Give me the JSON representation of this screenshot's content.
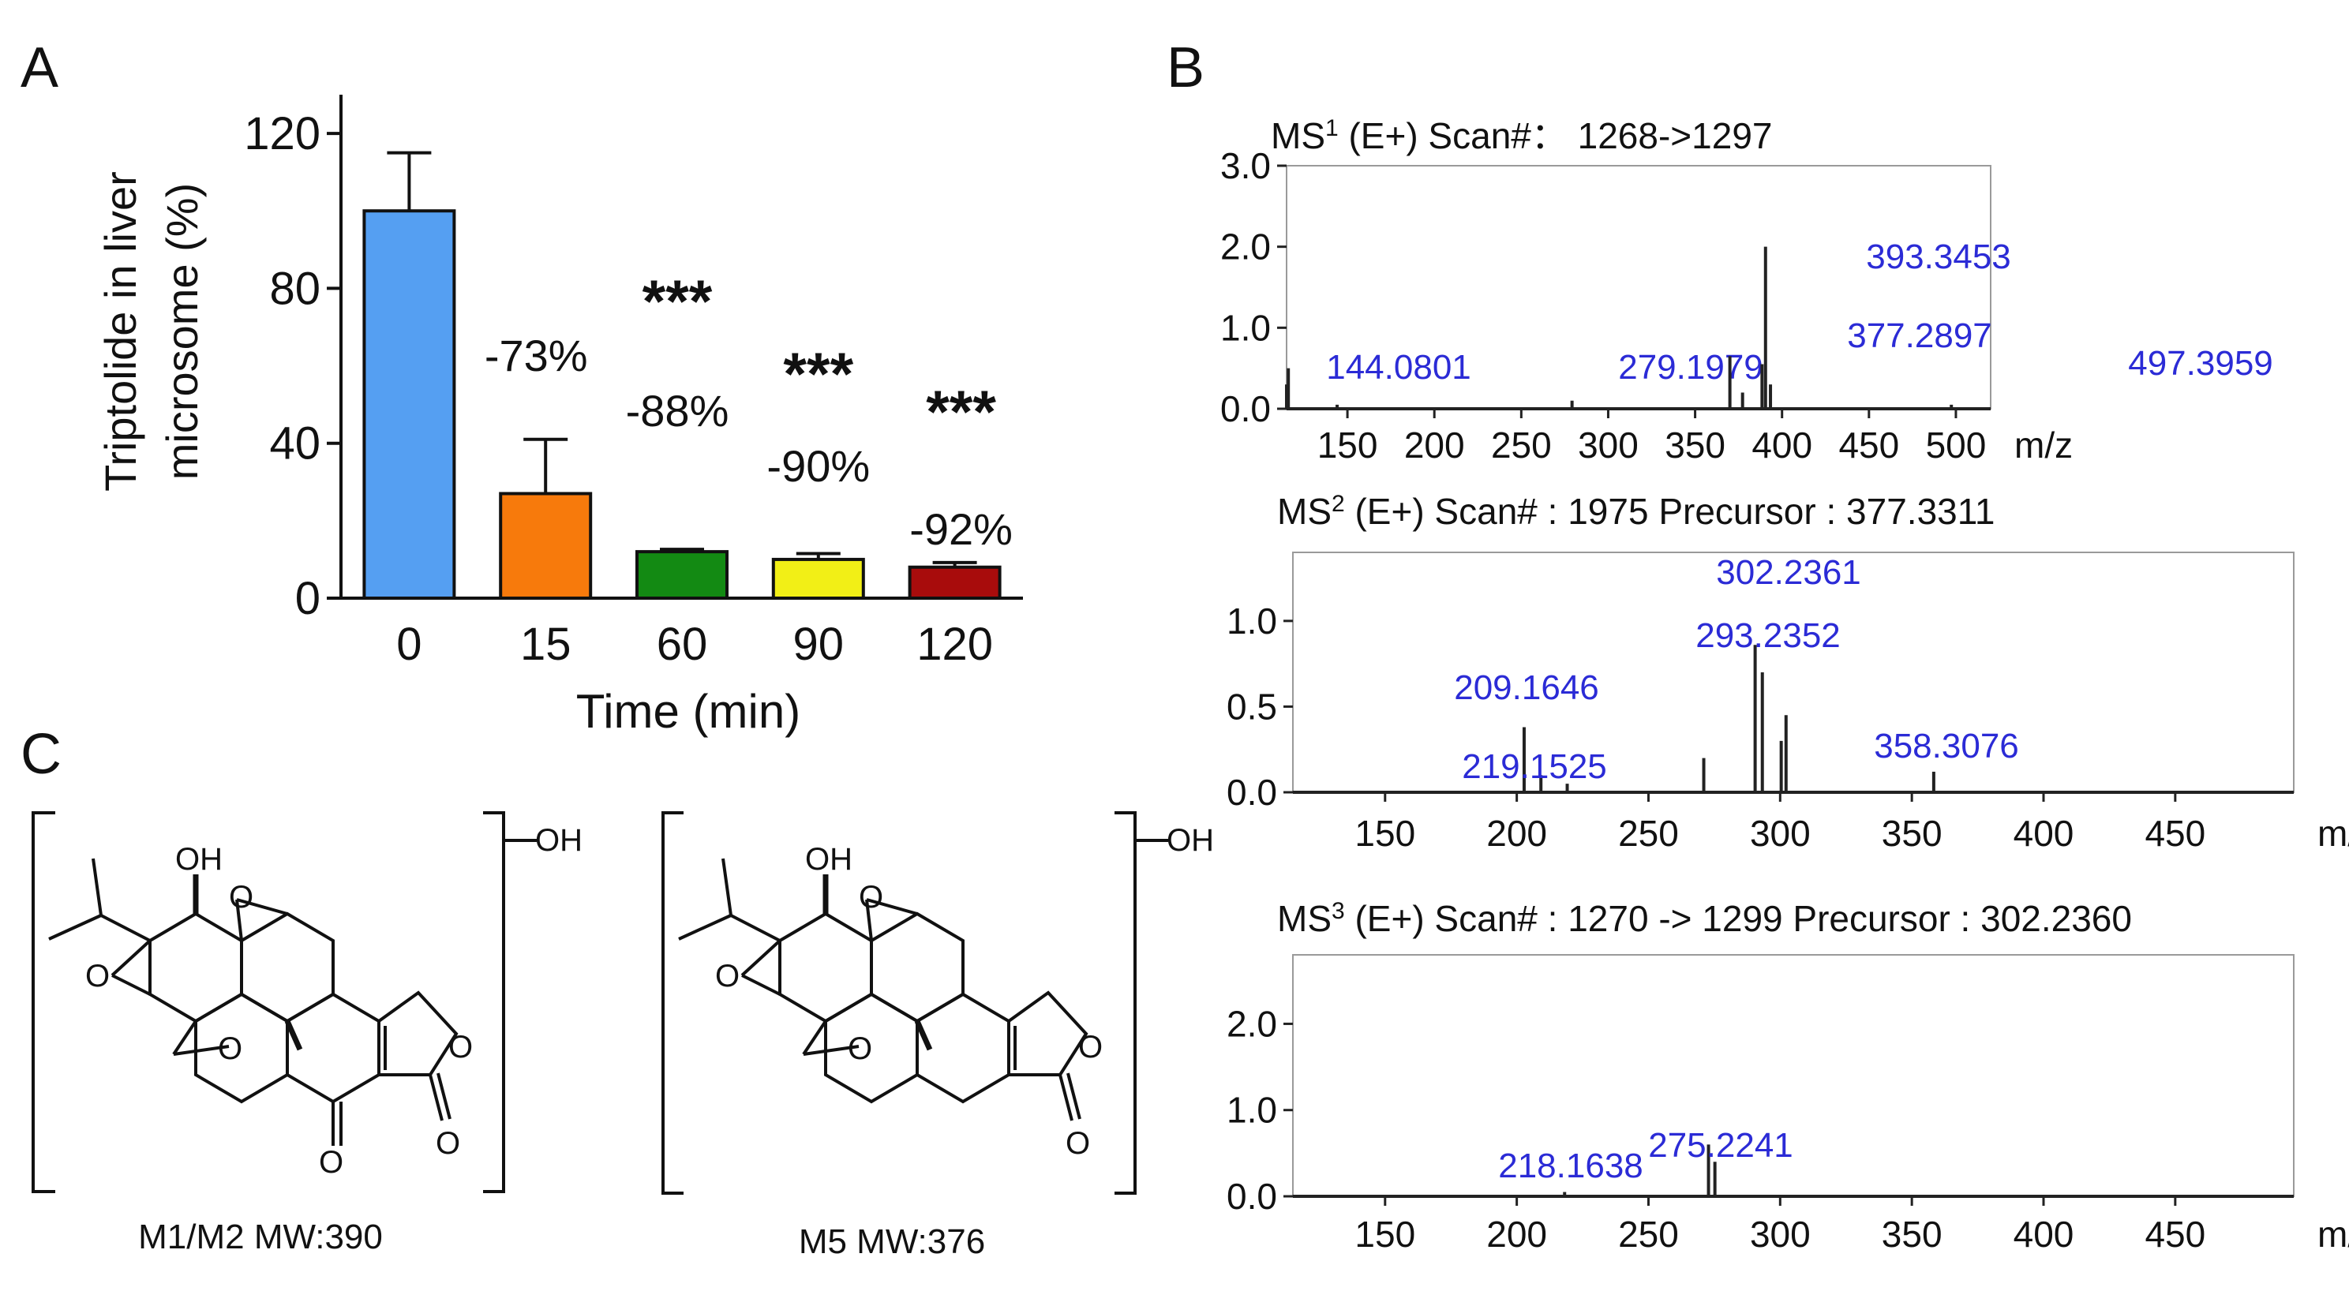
{
  "panel_labels": {
    "a": "A",
    "b": "B",
    "c": "C"
  },
  "chart_data": [
    {
      "id": "A",
      "type": "bar",
      "ylabel_line1": "Triptolide in liver",
      "ylabel_line2": "microsome (%)",
      "xlabel": "Time (min)",
      "ylim": [
        0,
        130
      ],
      "yticks": [
        0,
        40,
        80,
        120
      ],
      "categories": [
        "0",
        "15",
        "60",
        "90",
        "120"
      ],
      "values": [
        100,
        27,
        12,
        10,
        8
      ],
      "errors": [
        15,
        14,
        0.6,
        1.5,
        1.2
      ],
      "colors": [
        "#559ff2",
        "#f77a0c",
        "#138a13",
        "#f2ef16",
        "#a80c0c"
      ],
      "percent_labels": [
        "",
        "-73%",
        "-88%",
        "-90%",
        "-92%"
      ],
      "significance": [
        "",
        "",
        "***",
        "***",
        "***"
      ]
    },
    {
      "id": "MS1",
      "type": "bar",
      "title_prefix": "MS",
      "title_sup": "1",
      "title_rest": " (E+)    Scan#： 1268->1297",
      "xlim": [
        115,
        520
      ],
      "xticks": [
        150,
        200,
        250,
        300,
        350,
        400,
        450,
        500
      ],
      "xunit": "m/z",
      "ylim": [
        0,
        3.0
      ],
      "yticks": [
        "0.0",
        "1.0",
        "2.0",
        "3.0"
      ],
      "peaks": [
        {
          "mz": 115,
          "intensity": 0.3,
          "label": ""
        },
        {
          "mz": 116,
          "intensity": 0.5,
          "label": ""
        },
        {
          "mz": 144.0801,
          "intensity": 0.05,
          "label": "144.0801"
        },
        {
          "mz": 279.1979,
          "intensity": 0.1,
          "label": "279.1979"
        },
        {
          "mz": 370,
          "intensity": 0.65,
          "label": ""
        },
        {
          "mz": 377.2897,
          "intensity": 0.2,
          "label": "377.2897"
        },
        {
          "mz": 388.5,
          "intensity": 0.55,
          "label": ""
        },
        {
          "mz": 390.5,
          "intensity": 2.0,
          "label": ""
        },
        {
          "mz": 393.3453,
          "intensity": 0.3,
          "label": "393.3453"
        },
        {
          "mz": 497.3959,
          "intensity": 0.05,
          "label": "497.3959"
        }
      ]
    },
    {
      "id": "MS2",
      "type": "bar",
      "title_prefix": "MS",
      "title_sup": "2",
      "title_rest": " (E+)    Scan# : 1975    Precursor : 377.3311",
      "xlim": [
        115,
        495
      ],
      "xticks": [
        150,
        200,
        250,
        300,
        350,
        400,
        450
      ],
      "xunit": "m/z",
      "ylim": [
        0,
        1.4
      ],
      "yticks": [
        "0.0",
        "0.5",
        "1.0"
      ],
      "peaks": [
        {
          "mz": 202.8,
          "intensity": 0.38,
          "label": ""
        },
        {
          "mz": 209.1646,
          "intensity": 0.1,
          "label": "209.1646"
        },
        {
          "mz": 219.1525,
          "intensity": 0.05,
          "label": "219.1525"
        },
        {
          "mz": 271,
          "intensity": 0.2,
          "label": ""
        },
        {
          "mz": 290.5,
          "intensity": 0.86,
          "label": ""
        },
        {
          "mz": 293.2352,
          "intensity": 0.7,
          "label": "293.2352"
        },
        {
          "mz": 300.4,
          "intensity": 0.3,
          "label": ""
        },
        {
          "mz": 302.2361,
          "intensity": 0.45,
          "label": "302.2361"
        },
        {
          "mz": 358.3076,
          "intensity": 0.12,
          "label": "358.3076"
        }
      ]
    },
    {
      "id": "MS3",
      "type": "bar",
      "title_prefix": "MS",
      "title_sup": "3",
      "title_rest": " (E+) Scan# : 1270 -> 1299    Precursor : 302.2360",
      "xlim": [
        115,
        495
      ],
      "xticks": [
        150,
        200,
        250,
        300,
        350,
        400,
        450
      ],
      "xunit": "m/z",
      "ylim": [
        0,
        2.8
      ],
      "yticks": [
        "0.0",
        "1.0",
        "2.0"
      ],
      "peaks": [
        {
          "mz": 218.1638,
          "intensity": 0.05,
          "label": "218.1638"
        },
        {
          "mz": 272.8,
          "intensity": 0.6,
          "label": ""
        },
        {
          "mz": 275.2241,
          "intensity": 0.4,
          "label": "275.2241"
        }
      ]
    }
  ],
  "structures": {
    "oh_label": "OH",
    "ring_oh_label": "OH",
    "o_label": "O",
    "left_caption": "M1/M2 MW:390",
    "right_caption": "M5 MW:376"
  }
}
